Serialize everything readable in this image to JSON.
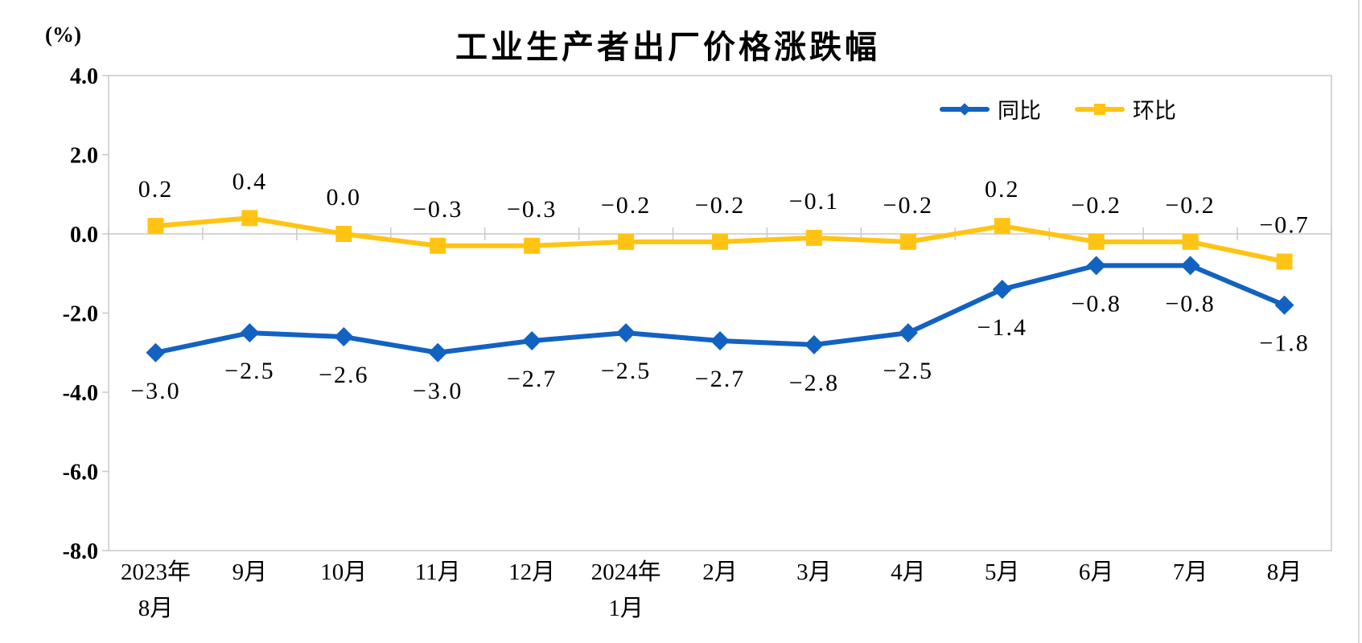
{
  "page": {
    "background": "#FFFFFF"
  },
  "chart_data": {
    "type": "line",
    "title": "工业生产者出厂价格涨跌幅",
    "unit_label": "(%)",
    "categories": [
      [
        "2023年",
        "8月"
      ],
      [
        "9月"
      ],
      [
        "10月"
      ],
      [
        "11月"
      ],
      [
        "12月"
      ],
      [
        "2024年",
        "1月"
      ],
      [
        "2月"
      ],
      [
        "3月"
      ],
      [
        "4月"
      ],
      [
        "5月"
      ],
      [
        "6月"
      ],
      [
        "7月"
      ],
      [
        "8月"
      ]
    ],
    "series": [
      {
        "name": "同比",
        "color": "#1262C2",
        "marker": "diamond",
        "label_position": "below",
        "values": [
          -3.0,
          -2.5,
          -2.6,
          -3.0,
          -2.7,
          -2.5,
          -2.7,
          -2.8,
          -2.5,
          -1.4,
          -0.8,
          -0.8,
          -1.8
        ]
      },
      {
        "name": "环比",
        "color": "#FFC413",
        "marker": "square",
        "label_position": "above",
        "values": [
          0.2,
          0.4,
          0.0,
          -0.3,
          -0.3,
          -0.2,
          -0.2,
          -0.1,
          -0.2,
          0.2,
          -0.2,
          -0.2,
          -0.7
        ]
      }
    ],
    "y_axis": {
      "min": -8,
      "max": 4,
      "step": 2,
      "tick_labels": [
        "4.0",
        "2.0",
        "0.0",
        "-2.0",
        "-4.0",
        "-6.0",
        "-8.0"
      ]
    },
    "grid": {
      "zero_line": true,
      "full_grid": false
    },
    "legend": {
      "position": "top-right",
      "entries": [
        "同比",
        "环比"
      ]
    },
    "axis_color": "#C9C9C9",
    "label_color": "#000000"
  }
}
